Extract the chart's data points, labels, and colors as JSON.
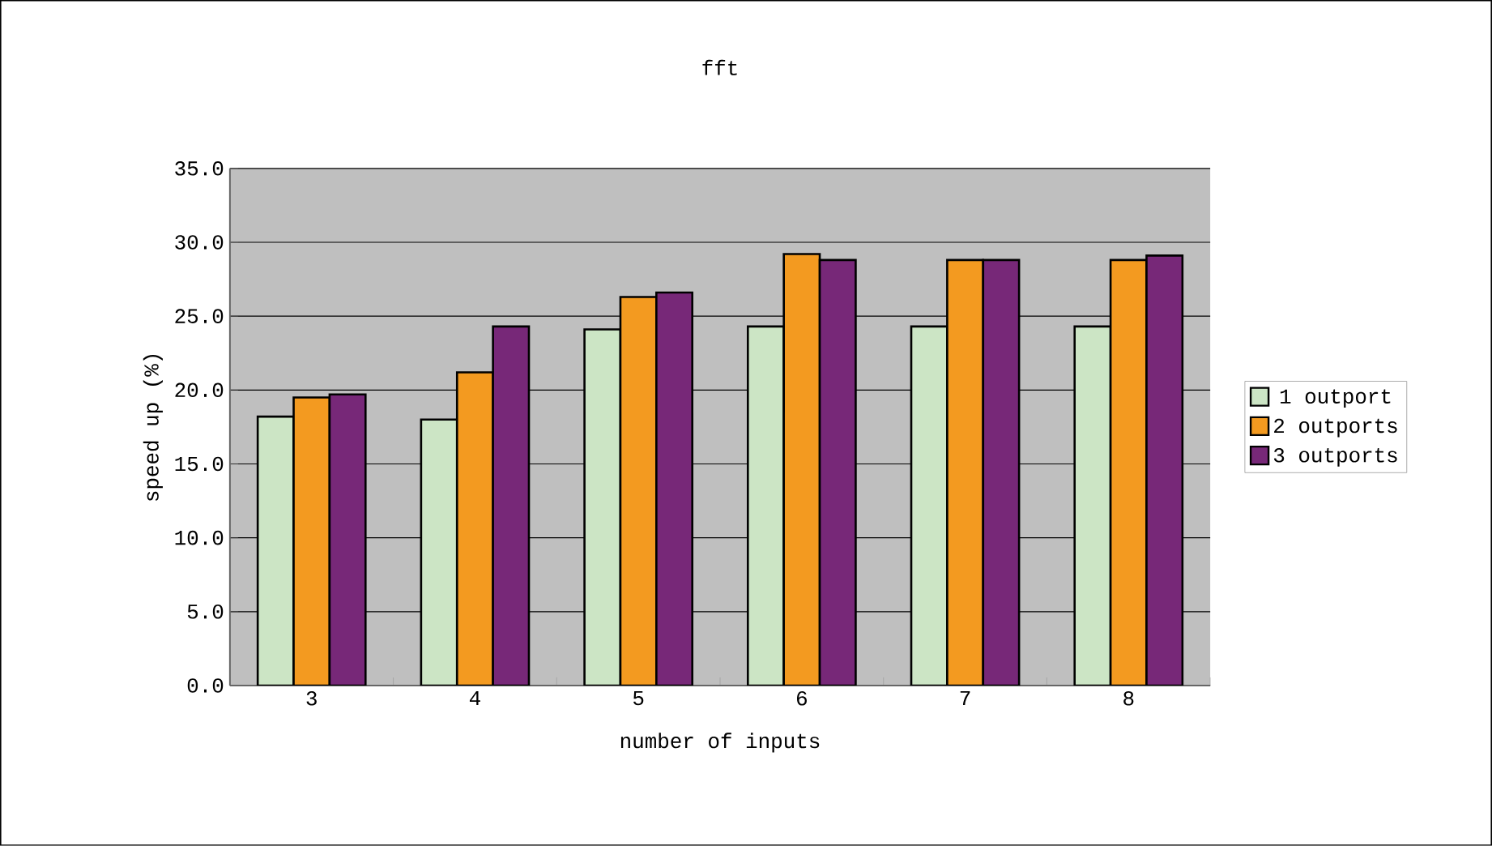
{
  "chart_data": {
    "type": "bar",
    "title": "fft",
    "xlabel": "number of inputs",
    "ylabel": "speed up (%)",
    "categories": [
      "3",
      "4",
      "5",
      "6",
      "7",
      "8"
    ],
    "series": [
      {
        "name": "1 outport",
        "color": "#cce5c5",
        "values": [
          18.2,
          18.0,
          24.1,
          24.3,
          24.3,
          24.3
        ]
      },
      {
        "name": "2 outports",
        "color": "#f39a20",
        "values": [
          19.5,
          21.2,
          26.3,
          29.2,
          28.8,
          28.8
        ]
      },
      {
        "name": "3 outports",
        "color": "#772878",
        "values": [
          19.7,
          24.3,
          26.6,
          28.8,
          28.8,
          29.1
        ]
      }
    ],
    "ylim": [
      0,
      35
    ],
    "yticks": [
      {
        "value": 0,
        "label": "0.0"
      },
      {
        "value": 5,
        "label": "5.0"
      },
      {
        "value": 10,
        "label": "10.0"
      },
      {
        "value": 15,
        "label": "15.0"
      },
      {
        "value": 20,
        "label": "20.0"
      },
      {
        "value": 25,
        "label": "25.0"
      },
      {
        "value": 30,
        "label": "30.0"
      },
      {
        "value": 35,
        "label": "35.0"
      }
    ],
    "grid": "y",
    "legend": "right"
  }
}
